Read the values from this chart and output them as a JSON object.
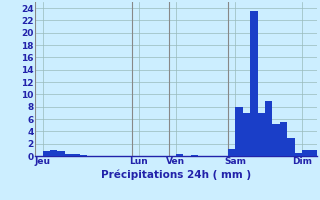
{
  "title": "",
  "xlabel": "Précipitations 24h ( mm )",
  "background_color": "#cceeff",
  "bar_color": "#1a3ec8",
  "ylim": [
    0,
    25
  ],
  "yticks": [
    0,
    2,
    4,
    6,
    8,
    10,
    12,
    14,
    16,
    18,
    20,
    22,
    24
  ],
  "day_labels": [
    "Jeu",
    "Lun",
    "Ven",
    "Sam",
    "Dim"
  ],
  "day_positions": [
    1,
    14,
    19,
    27,
    36
  ],
  "n_bars": 38,
  "values": [
    0,
    0.8,
    1.0,
    0.8,
    0.4,
    0.3,
    0.2,
    0,
    0,
    0,
    0,
    0,
    0,
    0,
    0,
    0,
    0,
    0,
    0,
    0.3,
    0,
    0.2,
    0,
    0,
    0,
    0,
    1.2,
    8.0,
    7.0,
    23.5,
    7.0,
    9.0,
    5.2,
    5.5,
    3.0,
    0.5,
    1.0,
    1.0
  ],
  "vline_positions": [
    0,
    13,
    18,
    26
  ],
  "grid_color": "#99bbbb",
  "tick_color": "#2222aa",
  "label_color": "#2222aa",
  "figsize": [
    3.2,
    2.0
  ],
  "dpi": 100
}
